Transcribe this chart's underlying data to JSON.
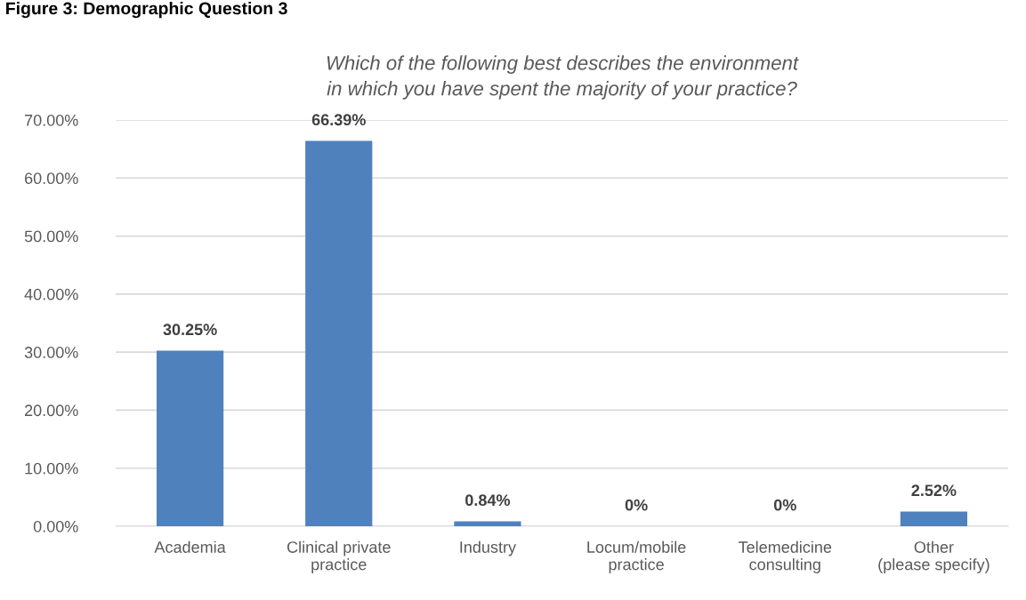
{
  "chart_data": {
    "type": "bar",
    "title": "Which of the following best describes the environment\nin which you have spent the majority of your practice?",
    "annotations": [
      "Figure 3: Demographic Question 3"
    ],
    "categories": [
      "Academia",
      "Clinical private\npractice",
      "Industry",
      "Locum/mobile\npractice",
      "Telemedicine\nconsulting",
      "Other\n(please specify)"
    ],
    "values": [
      30.25,
      66.39,
      0.84,
      0,
      0,
      2.52
    ],
    "value_labels": [
      "30.25%",
      "66.39%",
      "0.84%",
      "0%",
      "0%",
      "2.52%"
    ],
    "color": "#4f81bd",
    "ylim": [
      0,
      70
    ],
    "yticks": [
      {
        "value": 0,
        "label": "0.00%"
      },
      {
        "value": 10,
        "label": "10.00%"
      },
      {
        "value": 20,
        "label": "20.00%"
      },
      {
        "value": 30,
        "label": "30.00%"
      },
      {
        "value": 40,
        "label": "40.00%"
      },
      {
        "value": 50,
        "label": "50.00%"
      },
      {
        "value": 60,
        "label": "60.00%"
      },
      {
        "value": 70,
        "label": "70.00%"
      }
    ],
    "grid": "y",
    "legend": false
  }
}
